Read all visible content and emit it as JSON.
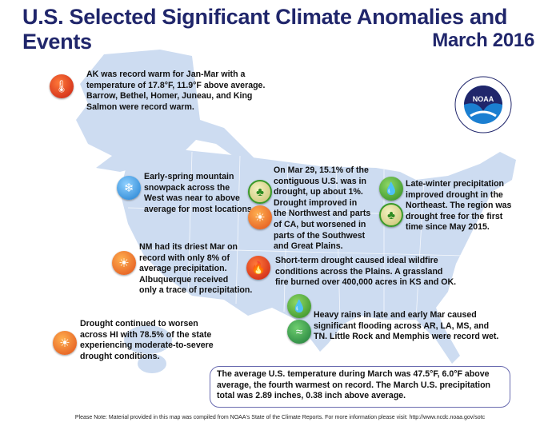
{
  "header": {
    "title": "U.S. Selected Significant Climate Anomalies and Events",
    "subtitle": "March 2016"
  },
  "logo": {
    "text": "NOAA",
    "ring_text": "NATIONAL OCEANIC AND ATMOSPHERIC ADMINISTRATION · U.S. DEPARTMENT OF COMMERCE"
  },
  "events": [
    {
      "id": "alaska",
      "icons": [
        "thermometer-warm"
      ],
      "lines": [
        "AK was record warm for Jan-Mar with a",
        "temperature of 17.8°F, 11.9°F above average.",
        "Barrow, Bethel, Homer, Juneau, and King",
        "Salmon were record warm."
      ]
    },
    {
      "id": "snowpack",
      "icons": [
        "snow"
      ],
      "lines": [
        "Early-spring mountain",
        "snowpack across the",
        "West was near to above",
        "average for most locations."
      ]
    },
    {
      "id": "drought-us",
      "icons": [
        "drought-improved",
        "drought-worsened"
      ],
      "lines": [
        "On Mar 29, 15.1% of the",
        "contiguous U.S. was in",
        "drought, up about 1%.",
        "Drought improved in",
        "the Northwest and parts",
        "of CA, but worsened in",
        "parts of the Southwest",
        "and Great Plains."
      ]
    },
    {
      "id": "northeast",
      "icons": [
        "precipitation",
        "drought-improved"
      ],
      "lines": [
        "Late-winter precipitation",
        "improved drought in the",
        "Northeast. The region was",
        "drought free for the first",
        "time since May 2015."
      ]
    },
    {
      "id": "new-mexico",
      "icons": [
        "dry"
      ],
      "lines": [
        "NM had its driest Mar on",
        "record with only 8% of",
        "average precipitation.",
        "Albuquerque received",
        "only a trace of precipitation."
      ]
    },
    {
      "id": "wildfire",
      "icons": [
        "wildfire"
      ],
      "lines": [
        "Short-term drought caused ideal wildfire",
        "conditions across the Plains. A grassland",
        "fire burned over 400,000 acres in KS and OK."
      ]
    },
    {
      "id": "flooding",
      "icons": [
        "precipitation",
        "flood"
      ],
      "lines": [
        "Heavy rains in late and early Mar caused",
        "significant flooding across AR, LA, MS, and",
        "TN. Little Rock and Memphis were record wet."
      ]
    },
    {
      "id": "hawaii",
      "icons": [
        "drought-worsened"
      ],
      "lines": [
        "Drought continued to worsen",
        "across HI with 78.5% of the state",
        "experiencing moderate-to-severe",
        "drought conditions."
      ]
    }
  ],
  "summary": "The average U.S. temperature during March was 47.5°F, 6.0°F above average, the fourth warmest on record. The March U.S. precipitation total was 2.89 inches, 0.38 inch above average.",
  "footnote": "Please Note: Material provided in this map was compiled from NOAA's State of the Climate Reports. For more information please visit: http://www.ncdc.noaa.gov/sotc",
  "colors": {
    "title": "#20266b",
    "land": "#cddcf1",
    "warm": "#c81e12",
    "green": "#2e8a22"
  }
}
